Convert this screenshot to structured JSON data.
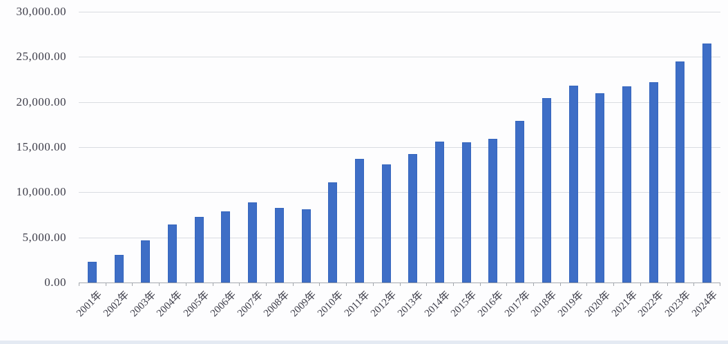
{
  "chart_data": {
    "type": "bar",
    "title": "",
    "categories": [
      "2001年",
      "2002年",
      "2003年",
      "2004年",
      "2005年",
      "2006年",
      "2007年",
      "2008年",
      "2009年",
      "2010年",
      "2011年",
      "2012年",
      "2013年",
      "2014年",
      "2015年",
      "2016年",
      "2017年",
      "2018年",
      "2019年",
      "2020年",
      "2021年",
      "2022年",
      "2023年",
      "2024年"
    ],
    "values": [
      2300,
      3100,
      4700,
      6400,
      7300,
      7900,
      8900,
      8300,
      8100,
      11100,
      13700,
      13100,
      14200,
      15600,
      15500,
      15900,
      17900,
      20400,
      21800,
      21000,
      21700,
      22200,
      24500,
      26500
    ],
    "xlabel": "",
    "ylabel": "",
    "ylim": [
      0,
      30000
    ],
    "ytick_interval": 5000,
    "ytick_labels": [
      "0.00",
      "5,000.00",
      "10,000.00",
      "15,000.00",
      "20,000.00",
      "25,000.00",
      "30,000.00"
    ],
    "grid": true,
    "legend": false,
    "colors": {
      "bar_fill": "#3e6ec6",
      "bar_border": "#3565bd",
      "gridline": "#d9dce1",
      "axis_line": "#a3a7ad",
      "label_text": "#3d3d49",
      "background": "#fdfdfe"
    }
  }
}
